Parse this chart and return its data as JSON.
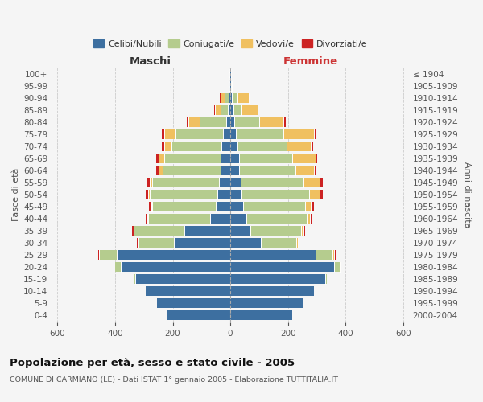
{
  "age_groups": [
    "0-4",
    "5-9",
    "10-14",
    "15-19",
    "20-24",
    "25-29",
    "30-34",
    "35-39",
    "40-44",
    "45-49",
    "50-54",
    "55-59",
    "60-64",
    "65-69",
    "70-74",
    "75-79",
    "80-84",
    "85-89",
    "90-94",
    "95-99",
    "100+"
  ],
  "birth_years": [
    "2000-2004",
    "1995-1999",
    "1990-1994",
    "1985-1989",
    "1980-1984",
    "1975-1979",
    "1970-1974",
    "1965-1969",
    "1960-1964",
    "1955-1959",
    "1950-1954",
    "1945-1949",
    "1940-1944",
    "1935-1939",
    "1930-1934",
    "1925-1929",
    "1920-1924",
    "1915-1919",
    "1910-1914",
    "1905-1909",
    "≤ 1904"
  ],
  "maschi_celibi": [
    220,
    255,
    295,
    330,
    380,
    395,
    195,
    160,
    70,
    50,
    45,
    40,
    35,
    35,
    30,
    25,
    15,
    8,
    5,
    2,
    2
  ],
  "maschi_coniugati": [
    0,
    0,
    0,
    5,
    20,
    60,
    125,
    175,
    215,
    220,
    235,
    230,
    200,
    195,
    175,
    165,
    90,
    25,
    15,
    3,
    2
  ],
  "maschi_vedovi": [
    0,
    0,
    0,
    0,
    0,
    2,
    2,
    2,
    2,
    5,
    5,
    10,
    15,
    20,
    25,
    40,
    40,
    20,
    15,
    2,
    1
  ],
  "maschi_divorziati": [
    0,
    0,
    0,
    0,
    0,
    2,
    3,
    5,
    8,
    8,
    8,
    8,
    8,
    8,
    8,
    8,
    5,
    2,
    2,
    0,
    0
  ],
  "femmine_celibi": [
    215,
    255,
    290,
    330,
    360,
    295,
    105,
    70,
    55,
    45,
    40,
    35,
    30,
    30,
    25,
    20,
    15,
    10,
    5,
    2,
    2
  ],
  "femmine_coniugati": [
    0,
    0,
    0,
    5,
    20,
    60,
    125,
    175,
    210,
    215,
    235,
    220,
    195,
    185,
    170,
    165,
    85,
    30,
    20,
    3,
    2
  ],
  "femmine_vedovi": [
    0,
    0,
    0,
    0,
    2,
    5,
    5,
    8,
    12,
    20,
    35,
    55,
    65,
    80,
    85,
    105,
    85,
    55,
    40,
    5,
    2
  ],
  "femmine_divorziati": [
    0,
    0,
    0,
    0,
    2,
    5,
    5,
    8,
    8,
    10,
    10,
    10,
    8,
    8,
    8,
    8,
    8,
    2,
    2,
    0,
    0
  ],
  "colors": {
    "celibi": "#3d6fa0",
    "coniugati": "#b5cc8e",
    "vedovi": "#f0c060",
    "divorziati": "#cc2222"
  },
  "title": "Popolazione per età, sesso e stato civile - 2005",
  "subtitle": "COMUNE DI CARMIANO (LE) - Dati ISTAT 1° gennaio 2005 - Elaborazione TUTTITALIA.IT",
  "maschi_label": "Maschi",
  "femmine_label": "Femmine",
  "ylabel_left": "Fasce di età",
  "ylabel_right": "Anni di nascita",
  "xlim": 620,
  "bg_color": "#f5f5f5"
}
